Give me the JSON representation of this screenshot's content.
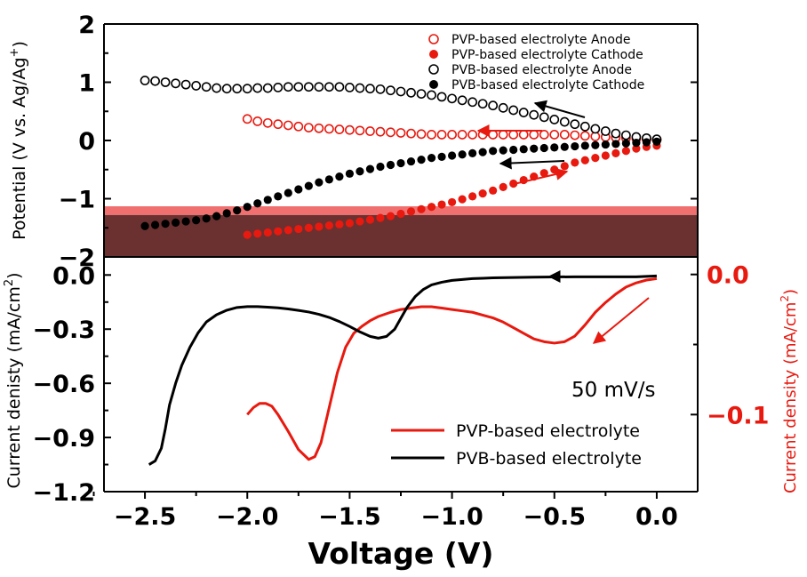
{
  "chart_data": [
    {
      "type": "scatter",
      "ylabel": "Potential (V vs. Ag/Ag",
      "ylabel_sup": "+",
      "ylabel_close": ")",
      "xlim": [
        -2.7,
        0.2
      ],
      "ylim": [
        -2,
        2
      ],
      "y_ticks": [
        "2",
        "1",
        "0",
        "−1",
        "−2"
      ],
      "y_tick_values": [
        2,
        1,
        0,
        -1,
        -2
      ],
      "bands": [
        {
          "y0": -1.28,
          "y1": -1.13,
          "color": "#f07070"
        },
        {
          "y0": -2.0,
          "y1": -1.28,
          "color": "#6b3030"
        }
      ],
      "series": [
        {
          "name": "PVP-based electrolyte Anode",
          "color": "#e8190f",
          "filled": false,
          "x": [
            -2.0,
            -1.95,
            -1.9,
            -1.85,
            -1.8,
            -1.75,
            -1.7,
            -1.65,
            -1.6,
            -1.55,
            -1.5,
            -1.45,
            -1.4,
            -1.35,
            -1.3,
            -1.25,
            -1.2,
            -1.15,
            -1.1,
            -1.05,
            -1.0,
            -0.95,
            -0.9,
            -0.85,
            -0.8,
            -0.75,
            -0.7,
            -0.65,
            -0.6,
            -0.55,
            -0.5,
            -0.45,
            -0.4,
            -0.35,
            -0.3,
            -0.25,
            -0.2,
            -0.15,
            -0.1,
            -0.05,
            0.0
          ],
          "y": [
            0.37,
            0.33,
            0.3,
            0.28,
            0.26,
            0.24,
            0.22,
            0.21,
            0.2,
            0.19,
            0.18,
            0.17,
            0.16,
            0.15,
            0.14,
            0.13,
            0.12,
            0.11,
            0.1,
            0.1,
            0.1,
            0.1,
            0.1,
            0.1,
            0.1,
            0.1,
            0.1,
            0.1,
            0.1,
            0.1,
            0.1,
            0.1,
            0.09,
            0.08,
            0.07,
            0.06,
            0.05,
            0.04,
            0.03,
            0.02,
            0.01
          ]
        },
        {
          "name": "PVP-based electrolyte Cathode",
          "color": "#e8190f",
          "filled": true,
          "x": [
            -2.0,
            -1.95,
            -1.9,
            -1.85,
            -1.8,
            -1.75,
            -1.7,
            -1.65,
            -1.6,
            -1.55,
            -1.5,
            -1.45,
            -1.4,
            -1.35,
            -1.3,
            -1.25,
            -1.2,
            -1.15,
            -1.1,
            -1.05,
            -1.0,
            -0.95,
            -0.9,
            -0.85,
            -0.8,
            -0.75,
            -0.7,
            -0.65,
            -0.6,
            -0.55,
            -0.5,
            -0.45,
            -0.4,
            -0.35,
            -0.3,
            -0.25,
            -0.2,
            -0.15,
            -0.1,
            -0.05,
            0.0
          ],
          "y": [
            -1.62,
            -1.6,
            -1.58,
            -1.56,
            -1.54,
            -1.52,
            -1.5,
            -1.48,
            -1.46,
            -1.44,
            -1.42,
            -1.39,
            -1.36,
            -1.33,
            -1.3,
            -1.26,
            -1.22,
            -1.18,
            -1.14,
            -1.1,
            -1.06,
            -1.01,
            -0.96,
            -0.91,
            -0.86,
            -0.8,
            -0.74,
            -0.68,
            -0.62,
            -0.56,
            -0.5,
            -0.44,
            -0.38,
            -0.34,
            -0.3,
            -0.26,
            -0.22,
            -0.18,
            -0.14,
            -0.11,
            -0.09
          ]
        },
        {
          "name": "PVB-based electrolyte Anode",
          "color": "#000000",
          "filled": false,
          "x": [
            -2.5,
            -2.45,
            -2.4,
            -2.35,
            -2.3,
            -2.25,
            -2.2,
            -2.15,
            -2.1,
            -2.05,
            -2.0,
            -1.95,
            -1.9,
            -1.85,
            -1.8,
            -1.75,
            -1.7,
            -1.65,
            -1.6,
            -1.55,
            -1.5,
            -1.45,
            -1.4,
            -1.35,
            -1.3,
            -1.25,
            -1.2,
            -1.15,
            -1.1,
            -1.05,
            -1.0,
            -0.95,
            -0.9,
            -0.85,
            -0.8,
            -0.75,
            -0.7,
            -0.65,
            -0.6,
            -0.55,
            -0.5,
            -0.45,
            -0.4,
            -0.35,
            -0.3,
            -0.25,
            -0.2,
            -0.15,
            -0.1,
            -0.05,
            0.0
          ],
          "y": [
            1.03,
            1.02,
            1.0,
            0.98,
            0.96,
            0.94,
            0.92,
            0.9,
            0.89,
            0.89,
            0.89,
            0.9,
            0.9,
            0.91,
            0.92,
            0.92,
            0.92,
            0.92,
            0.92,
            0.92,
            0.91,
            0.9,
            0.89,
            0.88,
            0.86,
            0.84,
            0.82,
            0.8,
            0.78,
            0.75,
            0.72,
            0.69,
            0.66,
            0.63,
            0.6,
            0.56,
            0.52,
            0.48,
            0.44,
            0.4,
            0.36,
            0.32,
            0.28,
            0.24,
            0.2,
            0.16,
            0.12,
            0.09,
            0.06,
            0.04,
            0.02
          ]
        },
        {
          "name": "PVB-based electrolyte Cathode",
          "color": "#000000",
          "filled": true,
          "x": [
            -2.5,
            -2.45,
            -2.4,
            -2.35,
            -2.3,
            -2.25,
            -2.2,
            -2.15,
            -2.1,
            -2.05,
            -2.0,
            -1.95,
            -1.9,
            -1.85,
            -1.8,
            -1.75,
            -1.7,
            -1.65,
            -1.6,
            -1.55,
            -1.5,
            -1.45,
            -1.4,
            -1.35,
            -1.3,
            -1.25,
            -1.2,
            -1.15,
            -1.1,
            -1.05,
            -1.0,
            -0.95,
            -0.9,
            -0.85,
            -0.8,
            -0.75,
            -0.7,
            -0.65,
            -0.6,
            -0.55,
            -0.5,
            -0.45,
            -0.4,
            -0.35,
            -0.3,
            -0.25,
            -0.2,
            -0.15,
            -0.1,
            -0.05,
            0.0
          ],
          "y": [
            -1.47,
            -1.45,
            -1.43,
            -1.41,
            -1.39,
            -1.37,
            -1.34,
            -1.3,
            -1.25,
            -1.2,
            -1.14,
            -1.08,
            -1.02,
            -0.96,
            -0.9,
            -0.84,
            -0.78,
            -0.72,
            -0.67,
            -0.62,
            -0.57,
            -0.53,
            -0.49,
            -0.45,
            -0.42,
            -0.39,
            -0.36,
            -0.33,
            -0.3,
            -0.28,
            -0.26,
            -0.24,
            -0.22,
            -0.2,
            -0.18,
            -0.17,
            -0.16,
            -0.15,
            -0.14,
            -0.13,
            -0.12,
            -0.11,
            -0.1,
            -0.09,
            -0.08,
            -0.07,
            -0.06,
            -0.05,
            -0.04,
            -0.03,
            -0.02
          ]
        }
      ]
    },
    {
      "type": "line",
      "xlabel": "Voltage (V)",
      "ylabel": "Current denisty (mA/cm",
      "ylabel_sup": "2",
      "ylabel_close": ")",
      "y2label": "Current density (mA/cm",
      "y2label_sup": "2",
      "y2label_close": ")",
      "xlim": [
        -2.7,
        0.2
      ],
      "ylim": [
        -1.2,
        0.1
      ],
      "x_ticks": [
        "−2.5",
        "−2.0",
        "−1.5",
        "−1.0",
        "−0.5",
        "0.0"
      ],
      "x_tick_values": [
        -2.5,
        -2.0,
        -1.5,
        -1.0,
        -0.5,
        0.0
      ],
      "y_ticks": [
        "0.0",
        "−0.3",
        "−0.6",
        "−0.9",
        "−1.2"
      ],
      "y_tick_values": [
        0.0,
        -0.3,
        -0.6,
        -0.9,
        -1.2
      ],
      "y2lim": [
        -0.155,
        0.0125
      ],
      "y2_ticks": [
        "0.0",
        "−0.1"
      ],
      "y2_tick_values": [
        0.0,
        -0.1
      ],
      "annotation": "50 mV/s",
      "series": [
        {
          "name": "PVP-based electrolyte",
          "color": "#e8190f",
          "axis": "right",
          "x": [
            -2.0,
            -1.97,
            -1.94,
            -1.91,
            -1.88,
            -1.85,
            -1.8,
            -1.75,
            -1.7,
            -1.67,
            -1.64,
            -1.6,
            -1.56,
            -1.52,
            -1.48,
            -1.44,
            -1.4,
            -1.36,
            -1.3,
            -1.25,
            -1.2,
            -1.15,
            -1.1,
            -1.05,
            -1.0,
            -0.95,
            -0.9,
            -0.85,
            -0.8,
            -0.75,
            -0.7,
            -0.65,
            -0.6,
            -0.55,
            -0.5,
            -0.45,
            -0.4,
            -0.35,
            -0.3,
            -0.25,
            -0.2,
            -0.15,
            -0.1,
            -0.05,
            0.0
          ],
          "y": [
            -0.1,
            -0.095,
            -0.092,
            -0.092,
            -0.094,
            -0.1,
            -0.112,
            -0.125,
            -0.132,
            -0.13,
            -0.12,
            -0.095,
            -0.07,
            -0.052,
            -0.042,
            -0.037,
            -0.033,
            -0.03,
            -0.027,
            -0.025,
            -0.024,
            -0.023,
            -0.023,
            -0.024,
            -0.025,
            -0.026,
            -0.027,
            -0.029,
            -0.031,
            -0.034,
            -0.038,
            -0.042,
            -0.046,
            -0.048,
            -0.049,
            -0.048,
            -0.044,
            -0.036,
            -0.027,
            -0.02,
            -0.014,
            -0.009,
            -0.006,
            -0.004,
            -0.003
          ]
        },
        {
          "name": "PVB-based electrolyte",
          "color": "#000000",
          "axis": "left",
          "x": [
            -2.48,
            -2.45,
            -2.42,
            -2.4,
            -2.38,
            -2.35,
            -2.32,
            -2.28,
            -2.24,
            -2.2,
            -2.15,
            -2.1,
            -2.05,
            -2.0,
            -1.95,
            -1.9,
            -1.85,
            -1.8,
            -1.75,
            -1.7,
            -1.65,
            -1.6,
            -1.55,
            -1.5,
            -1.45,
            -1.4,
            -1.36,
            -1.32,
            -1.28,
            -1.25,
            -1.22,
            -1.18,
            -1.14,
            -1.1,
            -1.05,
            -1.0,
            -0.95,
            -0.9,
            -0.85,
            -0.8,
            -0.7,
            -0.6,
            -0.5,
            -0.4,
            -0.3,
            -0.2,
            -0.1,
            0.0
          ],
          "y": [
            -1.05,
            -1.03,
            -0.96,
            -0.85,
            -0.72,
            -0.6,
            -0.5,
            -0.4,
            -0.32,
            -0.26,
            -0.22,
            -0.195,
            -0.18,
            -0.175,
            -0.175,
            -0.178,
            -0.182,
            -0.188,
            -0.196,
            -0.205,
            -0.218,
            -0.235,
            -0.258,
            -0.285,
            -0.315,
            -0.34,
            -0.35,
            -0.34,
            -0.3,
            -0.24,
            -0.18,
            -0.12,
            -0.08,
            -0.055,
            -0.04,
            -0.03,
            -0.025,
            -0.02,
            -0.018,
            -0.016,
            -0.014,
            -0.012,
            -0.011,
            -0.01,
            -0.01,
            -0.01,
            -0.01,
            -0.005
          ]
        }
      ]
    }
  ]
}
